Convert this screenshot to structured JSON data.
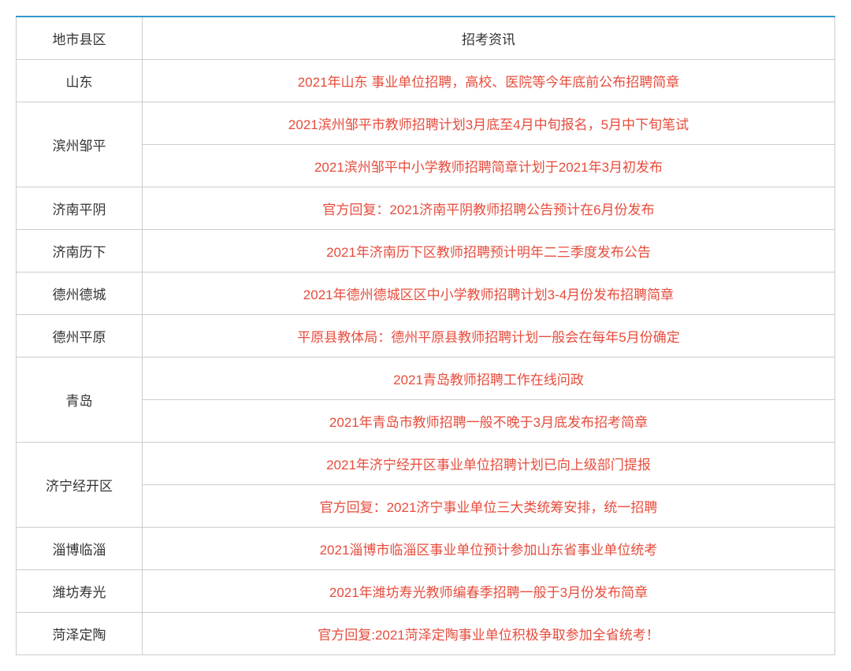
{
  "table": {
    "border_top_color": "#3399cc",
    "cell_border_color": "#cccccc",
    "header_text_color": "#333333",
    "district_text_color": "#333333",
    "info_text_color": "#e74c3c",
    "background_color": "#ffffff",
    "font_size": 17,
    "columns": [
      "地市县区",
      "招考资讯"
    ],
    "rows": [
      {
        "district": "山东",
        "rowspan": 1,
        "items": [
          "2021年山东 事业单位招聘，高校、医院等今年底前公布招聘简章"
        ]
      },
      {
        "district": "滨州邹平",
        "rowspan": 2,
        "items": [
          "2021滨州邹平市教师招聘计划3月底至4月中旬报名，5月中下旬笔试",
          "2021滨州邹平中小学教师招聘简章计划于2021年3月初发布"
        ]
      },
      {
        "district": "济南平阴",
        "rowspan": 1,
        "items": [
          "官方回复：2021济南平阴教师招聘公告预计在6月份发布"
        ]
      },
      {
        "district": "济南历下",
        "rowspan": 1,
        "items": [
          "2021年济南历下区教师招聘预计明年二三季度发布公告"
        ]
      },
      {
        "district": "德州德城",
        "rowspan": 1,
        "items": [
          "2021年德州德城区区中小学教师招聘计划3-4月份发布招聘简章"
        ]
      },
      {
        "district": "德州平原",
        "rowspan": 1,
        "items": [
          "平原县教体局：德州平原县教师招聘计划一般会在每年5月份确定"
        ]
      },
      {
        "district": "青岛",
        "rowspan": 2,
        "items": [
          "2021青岛教师招聘工作在线问政",
          "2021年青岛市教师招聘一般不晚于3月底发布招考简章"
        ]
      },
      {
        "district": "济宁经开区",
        "rowspan": 2,
        "items": [
          "2021年济宁经开区事业单位招聘计划已向上级部门提报",
          "官方回复：2021济宁事业单位三大类统筹安排，统一招聘"
        ]
      },
      {
        "district": "淄博临淄",
        "rowspan": 1,
        "items": [
          "2021淄博市临淄区事业单位预计参加山东省事业单位统考"
        ]
      },
      {
        "district": "潍坊寿光",
        "rowspan": 1,
        "items": [
          "2021年潍坊寿光教师编春季招聘一般于3月份发布简章"
        ]
      },
      {
        "district": "菏泽定陶",
        "rowspan": 1,
        "items": [
          "官方回复:2021菏泽定陶事业单位积极争取参加全省统考！"
        ]
      }
    ]
  }
}
